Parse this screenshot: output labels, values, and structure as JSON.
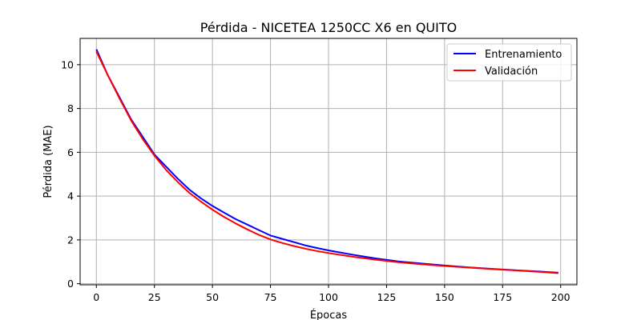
{
  "chart_data": {
    "type": "line",
    "title": "Pérdida - NICETEA 1250CC X6 en QUITO",
    "xlabel": "Épocas",
    "ylabel": "Pérdida (MAE)",
    "xlim": [
      -7,
      207
    ],
    "ylim": [
      -0.05,
      11.2
    ],
    "xticks": [
      0,
      25,
      50,
      75,
      100,
      125,
      150,
      175,
      200
    ],
    "yticks": [
      0,
      2,
      4,
      6,
      8,
      10
    ],
    "grid": true,
    "legend_position": "top-right",
    "x": [
      0,
      5,
      10,
      15,
      20,
      25,
      30,
      35,
      40,
      45,
      50,
      55,
      60,
      65,
      70,
      75,
      80,
      85,
      90,
      95,
      100,
      110,
      120,
      130,
      140,
      150,
      160,
      170,
      180,
      190,
      199
    ],
    "series": [
      {
        "name": "Entrenamiento",
        "color": "#0000ff",
        "values": [
          10.7,
          9.5,
          8.5,
          7.5,
          6.7,
          5.9,
          5.35,
          4.8,
          4.3,
          3.9,
          3.55,
          3.25,
          2.95,
          2.7,
          2.45,
          2.2,
          2.05,
          1.9,
          1.75,
          1.63,
          1.52,
          1.33,
          1.16,
          1.02,
          0.92,
          0.83,
          0.75,
          0.68,
          0.62,
          0.56,
          0.5
        ]
      },
      {
        "name": "Validación",
        "color": "#ff0000",
        "values": [
          10.6,
          9.5,
          8.45,
          7.45,
          6.6,
          5.85,
          5.2,
          4.65,
          4.15,
          3.75,
          3.38,
          3.05,
          2.75,
          2.48,
          2.23,
          2.02,
          1.86,
          1.72,
          1.6,
          1.49,
          1.4,
          1.24,
          1.1,
          0.98,
          0.89,
          0.81,
          0.74,
          0.67,
          0.61,
          0.55,
          0.48
        ]
      }
    ]
  }
}
